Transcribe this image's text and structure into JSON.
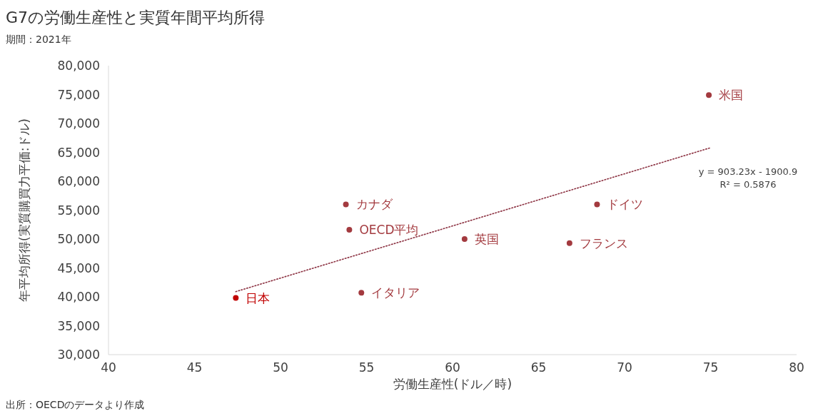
{
  "chart_data": {
    "type": "scatter",
    "title": "G7の労働生産性と実質年間平均所得",
    "subtitle": "期間：2021年",
    "xlabel": "労働生産性(ドル／時)",
    "ylabel": "年平均所得(実質購買力平価:ドル)",
    "xlim": [
      40,
      80
    ],
    "xticks": [
      40,
      45,
      50,
      55,
      60,
      65,
      70,
      75,
      80
    ],
    "ylim": [
      30000,
      80000
    ],
    "yticks": [
      {
        "value": 30000,
        "label": "30,000"
      },
      {
        "value": 35000,
        "label": "35,000"
      },
      {
        "value": 40000,
        "label": "40,000"
      },
      {
        "value": 45000,
        "label": "45,000"
      },
      {
        "value": 50000,
        "label": "50,000"
      },
      {
        "value": 55000,
        "label": "55,000"
      },
      {
        "value": 60000,
        "label": "60,000"
      },
      {
        "value": 65000,
        "label": "65,000"
      },
      {
        "value": 70000,
        "label": "70,000"
      },
      {
        "value": 75000,
        "label": "75,000"
      },
      {
        "value": 80000,
        "label": "80,000"
      }
    ],
    "grid": false,
    "marker": "circle",
    "series": [
      {
        "type": "line",
        "line_style": "dotted",
        "marker": "none",
        "color": "#8b3040",
        "x": [
          47.4,
          75
        ],
        "values": [
          40900,
          65800
        ]
      },
      {
        "name": "日本",
        "color": "#c00000",
        "x": [
          47.4
        ],
        "values": [
          39800
        ]
      },
      {
        "name": "カナダ",
        "color": "#a33a3f",
        "x": [
          53.8
        ],
        "values": [
          56000
        ]
      },
      {
        "name": "OECD平均",
        "color": "#a33a3f",
        "x": [
          54.0
        ],
        "values": [
          51600
        ]
      },
      {
        "name": "イタリア",
        "color": "#a33a3f",
        "x": [
          54.7
        ],
        "values": [
          40700
        ]
      },
      {
        "name": "英国",
        "color": "#a33a3f",
        "x": [
          60.7
        ],
        "values": [
          50000
        ]
      },
      {
        "name": "ドイツ",
        "color": "#a33a3f",
        "x": [
          68.4
        ],
        "values": [
          56000
        ]
      },
      {
        "name": "フランス",
        "color": "#a33a3f",
        "x": [
          66.8
        ],
        "values": [
          49300
        ]
      },
      {
        "name": "米国",
        "color": "#a33a3f",
        "x": [
          74.9
        ],
        "values": [
          74900
        ]
      }
    ],
    "annotations": [
      "y = 903.23x - 1900.9",
      "R² = 0.5876",
      "出所：OECDのデータより作成"
    ]
  }
}
